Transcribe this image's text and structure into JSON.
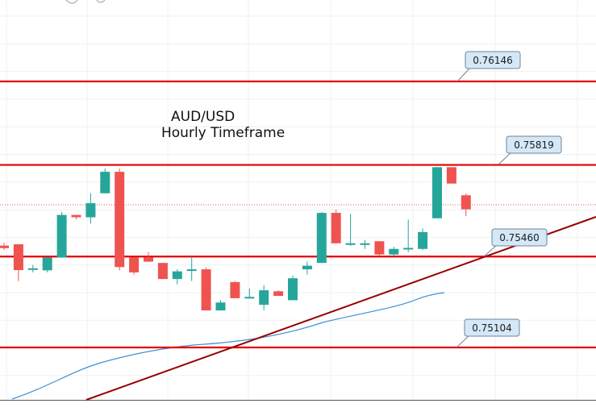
{
  "chart_data": {
    "type": "candlestick",
    "title": "AUD/USD",
    "subtitle": "Hourly Timeframe",
    "colors": {
      "bullish": "#26a69a",
      "bearish": "#ef5350",
      "level_line": "#e00000",
      "trendline": "#990000",
      "moving_average": "#3d8fd6",
      "callout_fill": "#d4e8f7",
      "callout_border": "#6f8596"
    },
    "levels": [
      {
        "label": "0.76146",
        "value": 0.76146
      },
      {
        "label": "0.75819",
        "value": 0.75819
      },
      {
        "label": "0.75460",
        "value": 0.7546
      },
      {
        "label": "0.75104",
        "value": 0.75104
      }
    ],
    "candles": [
      {
        "i": 0,
        "open": 0.75503,
        "close": 0.75493,
        "high": 0.75514,
        "low": 0.75486
      },
      {
        "i": 1,
        "open": 0.75508,
        "close": 0.75407,
        "high": 0.75508,
        "low": 0.75364
      },
      {
        "i": 2,
        "open": 0.7541,
        "close": 0.75414,
        "high": 0.75427,
        "low": 0.75398
      },
      {
        "i": 3,
        "open": 0.75406,
        "close": 0.75456,
        "high": 0.75456,
        "low": 0.75398
      },
      {
        "i": 4,
        "open": 0.75456,
        "close": 0.75623,
        "high": 0.75635,
        "low": 0.75456
      },
      {
        "i": 5,
        "open": 0.75623,
        "close": 0.75614,
        "high": 0.75623,
        "low": 0.75606
      },
      {
        "i": 6,
        "open": 0.75614,
        "close": 0.75669,
        "high": 0.75708,
        "low": 0.75589
      },
      {
        "i": 7,
        "open": 0.75708,
        "close": 0.75792,
        "high": 0.75805,
        "low": 0.75708
      },
      {
        "i": 8,
        "open": 0.75792,
        "close": 0.75419,
        "high": 0.75805,
        "low": 0.75406
      },
      {
        "i": 9,
        "open": 0.75456,
        "close": 0.75398,
        "high": 0.75456,
        "low": 0.75389
      },
      {
        "i": 10,
        "open": 0.75456,
        "close": 0.7544,
        "high": 0.75478,
        "low": 0.7544
      },
      {
        "i": 11,
        "open": 0.75435,
        "close": 0.75372,
        "high": 0.75435,
        "low": 0.75372
      },
      {
        "i": 12,
        "open": 0.75372,
        "close": 0.75402,
        "high": 0.7541,
        "low": 0.75351
      },
      {
        "i": 13,
        "open": 0.75406,
        "close": 0.7541,
        "high": 0.7546,
        "low": 0.75364
      },
      {
        "i": 14,
        "open": 0.7541,
        "close": 0.75249,
        "high": 0.75418,
        "low": 0.75249
      },
      {
        "i": 15,
        "open": 0.75249,
        "close": 0.7528,
        "high": 0.75289,
        "low": 0.75249
      },
      {
        "i": 16,
        "open": 0.7536,
        "close": 0.75297,
        "high": 0.75364,
        "low": 0.75297
      },
      {
        "i": 17,
        "open": 0.75297,
        "close": 0.75302,
        "high": 0.75335,
        "low": 0.75297
      },
      {
        "i": 18,
        "open": 0.75271,
        "close": 0.75328,
        "high": 0.75348,
        "low": 0.75249
      },
      {
        "i": 19,
        "open": 0.75324,
        "close": 0.75306,
        "high": 0.75328,
        "low": 0.75306
      },
      {
        "i": 20,
        "open": 0.75289,
        "close": 0.75375,
        "high": 0.75385,
        "low": 0.75289
      },
      {
        "i": 21,
        "open": 0.7541,
        "close": 0.75424,
        "high": 0.7544,
        "low": 0.75389
      },
      {
        "i": 22,
        "open": 0.75435,
        "close": 0.75631,
        "high": 0.75635,
        "low": 0.75435
      },
      {
        "i": 23,
        "open": 0.75631,
        "close": 0.75512,
        "high": 0.75644,
        "low": 0.75512
      },
      {
        "i": 24,
        "open": 0.75508,
        "close": 0.75512,
        "high": 0.75627,
        "low": 0.75503
      },
      {
        "i": 25,
        "open": 0.75508,
        "close": 0.75512,
        "high": 0.75525,
        "low": 0.7549
      },
      {
        "i": 26,
        "open": 0.7552,
        "close": 0.75468,
        "high": 0.7552,
        "low": 0.75464
      },
      {
        "i": 27,
        "open": 0.75468,
        "close": 0.7549,
        "high": 0.75499,
        "low": 0.75464
      },
      {
        "i": 28,
        "open": 0.7549,
        "close": 0.75494,
        "high": 0.75605,
        "low": 0.75477
      },
      {
        "i": 29,
        "open": 0.7549,
        "close": 0.75556,
        "high": 0.7557,
        "low": 0.75486
      },
      {
        "i": 30,
        "open": 0.7561,
        "close": 0.7581,
        "high": 0.7581,
        "low": 0.7561
      },
      {
        "i": 31,
        "open": 0.7581,
        "close": 0.75746,
        "high": 0.7581,
        "low": 0.75746
      },
      {
        "i": 32,
        "open": 0.757,
        "close": 0.75645,
        "high": 0.75708,
        "low": 0.75618
      }
    ]
  }
}
